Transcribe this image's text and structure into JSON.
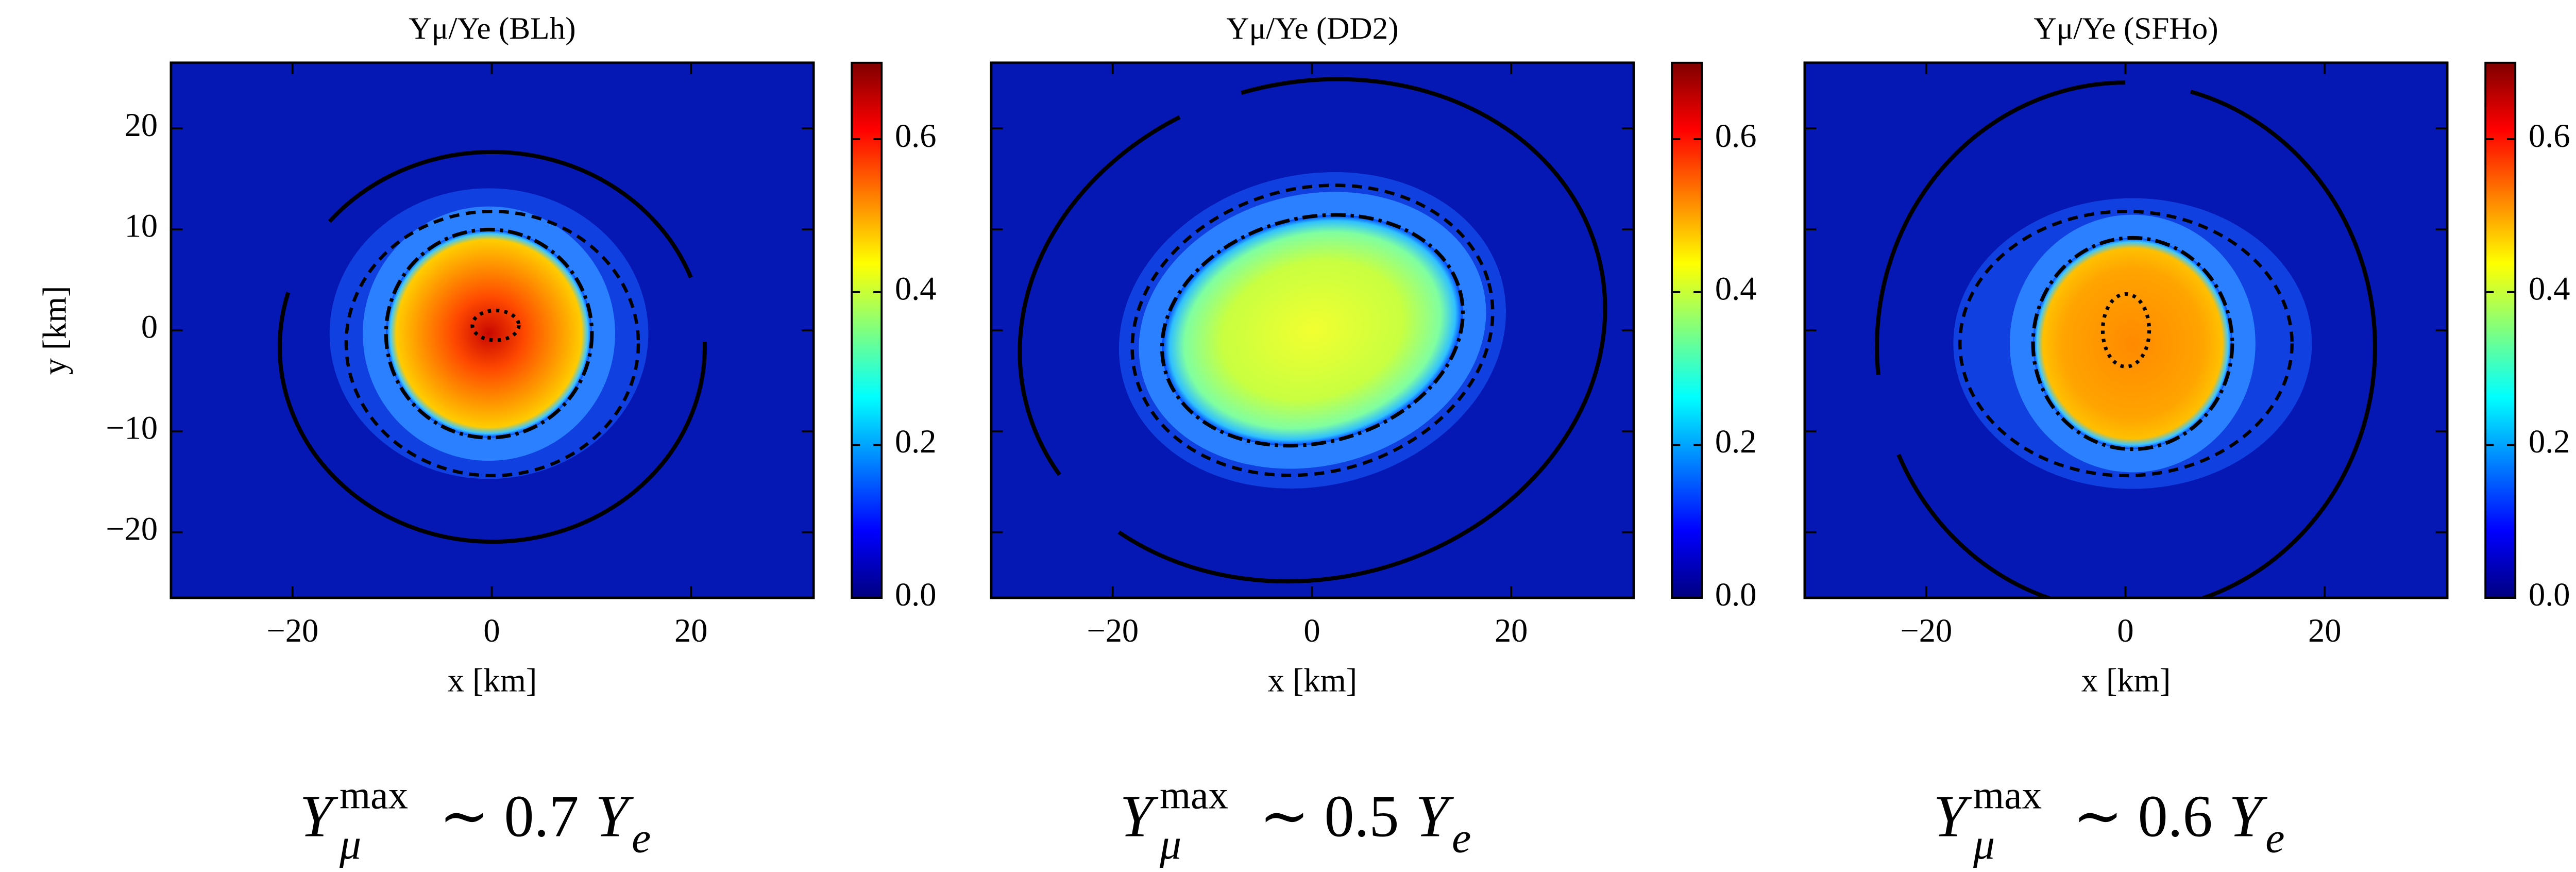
{
  "chart_data": [
    {
      "type": "heatmap",
      "title": "Yμ/Ye (BLh)",
      "xlabel": "x [km]",
      "ylabel": "y [km]",
      "xlim": [
        -32.2,
        32.3
      ],
      "ylim": [
        -26.5,
        26.5
      ],
      "xticks": [
        {
          "value": -20,
          "label": "−20"
        },
        0,
        20
      ],
      "yticks": [
        {
          "value": -20,
          "label": "−20"
        },
        {
          "value": -10,
          "label": "−10"
        },
        0,
        10,
        20
      ],
      "show_ytick_labels": true,
      "colorbar": {
        "colormap": "jet",
        "lim": [
          0,
          0.7
        ],
        "ticks": [
          {
            "value": 0,
            "label": "0.0"
          },
          0.2,
          0.4,
          0.6
        ]
      },
      "annotation": {
        "symbol": "Y",
        "symbol_sub": "μ",
        "symbol_sup": "max",
        "relation": "∼ 0.7",
        "factor": "Y",
        "factor_sub": "e"
      }
    },
    {
      "type": "heatmap",
      "title": "Yμ/Ye (DD2)",
      "xlabel": "x [km]",
      "xlim": [
        -32.2,
        32.3
      ],
      "ylim": [
        -26.5,
        26.5
      ],
      "xticks": [
        {
          "value": -20,
          "label": "−20"
        },
        0,
        20
      ],
      "yticks": [
        -20,
        -10,
        0,
        10,
        20
      ],
      "show_ytick_labels": false,
      "colorbar": {
        "colormap": "jet",
        "lim": [
          0,
          0.7
        ],
        "ticks": [
          {
            "value": 0,
            "label": "0.0"
          },
          0.2,
          0.4,
          0.6
        ]
      },
      "annotation": {
        "symbol": "Y",
        "symbol_sub": "μ",
        "symbol_sup": "max",
        "relation": "∼ 0.5",
        "factor": "Y",
        "factor_sub": "e"
      }
    },
    {
      "type": "heatmap",
      "title": "Yμ/Ye (SFHo)",
      "xlabel": "x [km]",
      "xlim": [
        -32.2,
        32.3
      ],
      "ylim": [
        -26.5,
        26.5
      ],
      "xticks": [
        {
          "value": -20,
          "label": "−20"
        },
        0,
        20
      ],
      "yticks": [
        -20,
        -10,
        0,
        10,
        20
      ],
      "show_ytick_labels": false,
      "colorbar": {
        "colormap": "jet",
        "lim": [
          0,
          0.7
        ],
        "ticks": [
          {
            "value": 0,
            "label": "0.0"
          },
          0.2,
          0.4,
          0.6
        ]
      },
      "annotation": {
        "symbol": "Y",
        "symbol_sub": "μ",
        "symbol_sup": "max",
        "relation": "∼ 0.6",
        "factor": "Y",
        "factor_sub": "e"
      }
    }
  ]
}
